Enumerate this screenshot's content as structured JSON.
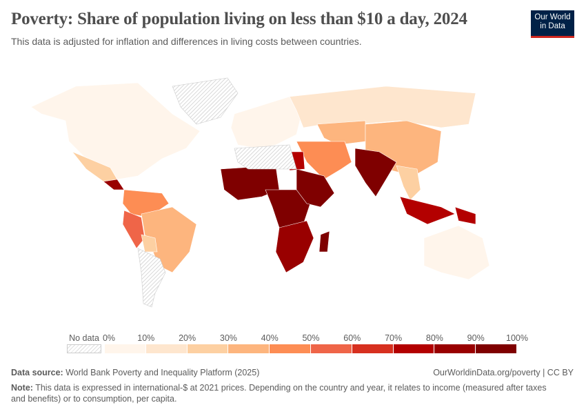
{
  "header": {
    "title": "Poverty: Share of population living on less than $10 a day, 2024",
    "subtitle": "This data is adjusted for inflation and differences in living costs between countries.",
    "logo_line1": "Our World",
    "logo_line2": "in Data"
  },
  "legend": {
    "no_data_label": "No data",
    "ticks": [
      "0%",
      "10%",
      "20%",
      "30%",
      "40%",
      "50%",
      "60%",
      "70%",
      "80%",
      "90%",
      "100%"
    ],
    "colors": [
      "#fff5eb",
      "#fee6ce",
      "#fdd0a2",
      "#fdb57e",
      "#fd8d54",
      "#ef6548",
      "#d7301f",
      "#b30000",
      "#990000",
      "#7f0000"
    ]
  },
  "footer": {
    "source_label": "Data source:",
    "source": "World Bank Poverty and Inequality Platform (2025)",
    "url": "OurWorldinData.org/poverty | CC BY",
    "note_label": "Note:",
    "note": "This data is expressed in international-$ at 2021 prices. Depending on the country and year, it relates to income (measured after taxes and benefits) or to consumption, per capita."
  },
  "map": {
    "regions": [
      {
        "name": "North America",
        "bin": 0
      },
      {
        "name": "Mexico",
        "bin": 2
      },
      {
        "name": "Central America",
        "bin": 8
      },
      {
        "name": "South America north",
        "bin": 4
      },
      {
        "name": "Brazil",
        "bin": 3
      },
      {
        "name": "Peru",
        "bin": 5
      },
      {
        "name": "Bolivia",
        "bin": 2
      },
      {
        "name": "Argentina",
        "bin": -1
      },
      {
        "name": "Europe",
        "bin": 0
      },
      {
        "name": "Russia",
        "bin": 1
      },
      {
        "name": "Kazakhstan",
        "bin": 3
      },
      {
        "name": "China",
        "bin": 3
      },
      {
        "name": "Middle East",
        "bin": 4
      },
      {
        "name": "Egypt",
        "bin": 7
      },
      {
        "name": "India",
        "bin": 9
      },
      {
        "name": "Southeast Asia",
        "bin": 2
      },
      {
        "name": "Indonesia",
        "bin": 7
      },
      {
        "name": "Papua New Guinea",
        "bin": 7
      },
      {
        "name": "Australia",
        "bin": 0
      },
      {
        "name": "West Africa",
        "bin": 9
      },
      {
        "name": "Central Africa",
        "bin": 9
      },
      {
        "name": "East Africa",
        "bin": 9
      },
      {
        "name": "Southern Africa",
        "bin": 8
      },
      {
        "name": "Madagascar",
        "bin": 9
      },
      {
        "name": "North Africa",
        "bin": -1
      },
      {
        "name": "Greenland",
        "bin": -1
      }
    ]
  }
}
